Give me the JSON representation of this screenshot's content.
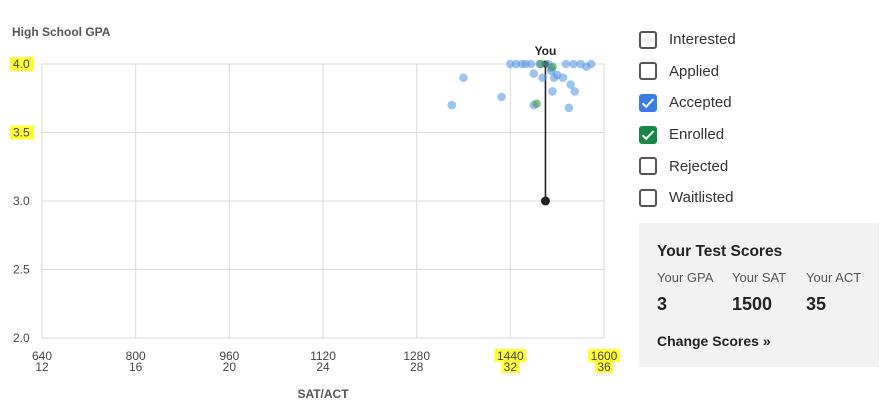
{
  "chart_data": {
    "type": "scatter",
    "ylabel": "High School GPA",
    "xlabel": "SAT/ACT",
    "xlim": [
      640,
      1600
    ],
    "ylim": [
      2.0,
      4.0
    ],
    "x_ticks_sat": [
      "640",
      "800",
      "960",
      "1120",
      "1280",
      "1440",
      "1600"
    ],
    "x_ticks_act": [
      "12",
      "16",
      "20",
      "24",
      "28",
      "32",
      "36"
    ],
    "y_ticks": [
      "2.0",
      "2.5",
      "3.0",
      "3.5",
      "4.0"
    ],
    "grid": true,
    "highlighted_ticks": [
      "4.0",
      "3.5",
      "1440",
      "32",
      "1600",
      "36"
    ],
    "you": {
      "label": "You",
      "x": 1500,
      "y": 3.0,
      "projected_y": 4.0
    },
    "series": [
      {
        "status": "accepted",
        "color": "#5b9be6",
        "points": [
          [
            1340,
            3.7
          ],
          [
            1360,
            3.9
          ],
          [
            1425,
            3.76
          ],
          [
            1440,
            4.0
          ],
          [
            1450,
            4.0
          ],
          [
            1460,
            4.0
          ],
          [
            1466,
            4.0
          ],
          [
            1475,
            4.0
          ],
          [
            1480,
            3.93
          ],
          [
            1480,
            3.7
          ],
          [
            1490,
            4.0
          ],
          [
            1495,
            3.9
          ],
          [
            1505,
            4.0
          ],
          [
            1510,
            3.97
          ],
          [
            1510,
            3.95
          ],
          [
            1512,
            3.8
          ],
          [
            1515,
            3.9
          ],
          [
            1520,
            3.92
          ],
          [
            1530,
            3.9
          ],
          [
            1535,
            4.0
          ],
          [
            1540,
            3.68
          ],
          [
            1543,
            3.85
          ],
          [
            1548,
            4.0
          ],
          [
            1550,
            3.8
          ],
          [
            1560,
            4.0
          ],
          [
            1570,
            3.98
          ],
          [
            1578,
            4.0
          ]
        ]
      },
      {
        "status": "enrolled",
        "color": "#3d9a4f",
        "points": [
          [
            1492,
            4.0
          ],
          [
            1485,
            3.71
          ],
          [
            1512,
            3.98
          ]
        ]
      }
    ]
  },
  "filters": [
    {
      "label": "Interested",
      "checked": false
    },
    {
      "label": "Applied",
      "checked": false
    },
    {
      "label": "Accepted",
      "checked": true,
      "color": "#3a7de8"
    },
    {
      "label": "Enrolled",
      "checked": true,
      "color": "#17874a"
    },
    {
      "label": "Rejected",
      "checked": false
    },
    {
      "label": "Waitlisted",
      "checked": false
    }
  ],
  "scores": {
    "title": "Your Test Scores",
    "gpa_label": "Your GPA",
    "gpa_value": "3",
    "sat_label": "Your SAT",
    "sat_value": "1500",
    "act_label": "Your ACT",
    "act_value": "35",
    "change_link": "Change Scores »"
  },
  "colors": {
    "highlight": "#ffff33",
    "you_marker": "#222222",
    "grid": "#d9d9d9"
  }
}
